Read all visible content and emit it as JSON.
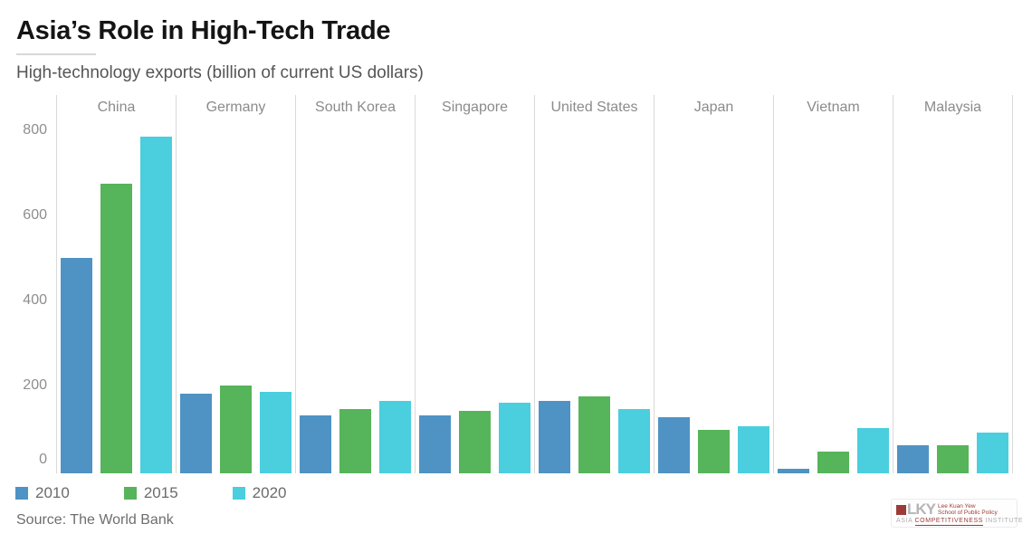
{
  "header": {
    "title": "Asia’s Role in High-Tech Trade",
    "subtitle": "High-technology exports (billion of current US dollars)"
  },
  "chart_data": {
    "type": "bar",
    "title": "Asia’s Role in High-Tech Trade",
    "subtitle": "High-technology exports (billion of current US dollars)",
    "categories": [
      "China",
      "Germany",
      "South Korea",
      "Singapore",
      "United States",
      "Japan",
      "Vietnam",
      "Malaysia"
    ],
    "series": [
      {
        "name": "2010",
        "color": "#4f93c4",
        "values": [
          500,
          180,
          130,
          130,
          165,
          125,
          5,
          60
        ]
      },
      {
        "name": "2015",
        "color": "#56b45a",
        "values": [
          675,
          200,
          145,
          140,
          175,
          95,
          45,
          60
        ]
      },
      {
        "name": "2020",
        "color": "#4bcedd",
        "values": [
          785,
          185,
          165,
          160,
          145,
          105,
          100,
          90
        ]
      }
    ],
    "ylabel": "",
    "xlabel": "",
    "yticks": [
      0,
      200,
      400,
      600,
      800
    ],
    "ylim": [
      -6,
      880
    ],
    "grid": false,
    "legend_position": "bottom-left"
  },
  "source": {
    "text": "Source: The World Bank"
  },
  "logo": {
    "lky": "LKY",
    "line1": "Lee Kuan Yew",
    "line2": "School of Public Policy",
    "word_asia": "ASIA",
    "word_competitiveness": "COMPETITIVENESS",
    "word_institute": "INSTITUTE",
    "accent_red": "#9d3b39",
    "accent_gray": "#b5b5b5"
  }
}
